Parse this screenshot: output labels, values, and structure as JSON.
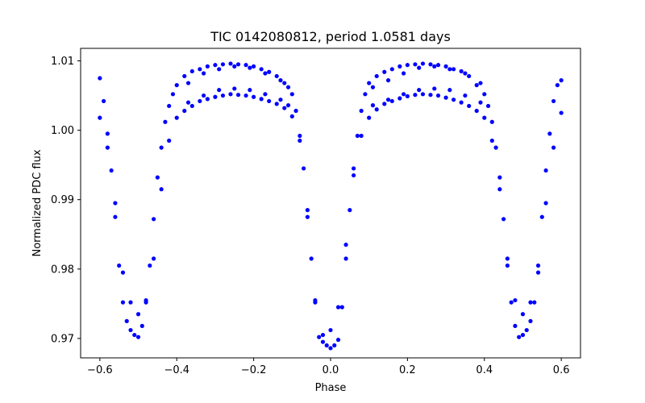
{
  "chart_data": {
    "type": "scatter",
    "title": "TIC 0142080812, period 1.0581 days",
    "xlabel": "Phase",
    "ylabel": "Normalized PDC flux",
    "xlim": [
      -0.65,
      0.65
    ],
    "ylim": [
      0.9672,
      1.0118
    ],
    "xticks": [
      -0.6,
      -0.4,
      -0.2,
      0.0,
      0.2,
      0.4,
      0.6
    ],
    "xtick_labels": [
      "−0.6",
      "−0.4",
      "−0.2",
      "0.0",
      "0.2",
      "0.4",
      "0.6"
    ],
    "yticks": [
      0.97,
      0.98,
      0.99,
      1.0,
      1.01
    ],
    "ytick_labels": [
      "0.97",
      "0.98",
      "0.99",
      "1.00",
      "1.01"
    ],
    "grid": false,
    "legend": "none",
    "marker_color": "#0000ff",
    "series": [
      {
        "name": "",
        "x": [
          -0.6,
          -0.59,
          -0.58,
          -0.57,
          -0.56,
          -0.55,
          -0.54,
          -0.53,
          -0.52,
          -0.51,
          -0.5,
          -0.49,
          -0.48,
          -0.47,
          -0.46,
          -0.45,
          -0.44,
          -0.43,
          -0.42,
          -0.41,
          -0.4,
          -0.38,
          -0.36,
          -0.34,
          -0.32,
          -0.3,
          -0.28,
          -0.26,
          -0.24,
          -0.22,
          -0.2,
          -0.18,
          -0.16,
          -0.14,
          -0.12,
          -0.1,
          -0.09,
          -0.08,
          -0.07,
          -0.06,
          -0.05,
          -0.04,
          -0.03,
          -0.02,
          -0.01,
          0.0,
          0.01,
          0.02,
          0.03,
          0.04,
          0.05,
          0.06,
          0.07,
          0.08,
          0.09,
          0.1,
          0.12,
          0.14,
          0.16,
          0.18,
          0.2,
          0.22,
          0.24,
          0.26,
          0.28,
          0.3,
          0.32,
          0.34,
          0.36,
          0.38,
          0.4,
          0.41,
          0.42,
          0.43,
          0.44,
          0.45,
          0.46,
          0.47,
          0.48,
          0.49,
          0.5,
          0.51,
          0.52,
          0.53,
          0.54,
          0.55,
          0.56,
          0.57,
          0.58,
          0.59,
          0.6,
          -0.6,
          -0.58,
          -0.56,
          -0.54,
          -0.52,
          -0.5,
          -0.48,
          -0.46,
          -0.44,
          -0.42,
          -0.4,
          -0.38,
          -0.36,
          -0.34,
          -0.32,
          -0.3,
          -0.28,
          -0.26,
          -0.24,
          -0.22,
          -0.2,
          -0.18,
          -0.16,
          -0.14,
          -0.12,
          -0.1,
          -0.08,
          -0.06,
          -0.04,
          -0.02,
          0.0,
          0.02,
          0.04,
          0.06,
          0.08,
          0.1,
          0.12,
          0.14,
          0.16,
          0.18,
          0.2,
          0.22,
          0.24,
          0.26,
          0.28,
          0.3,
          0.32,
          0.34,
          0.36,
          0.38,
          0.4,
          0.42,
          0.44,
          0.46,
          0.48,
          0.5,
          0.52,
          0.54,
          0.56,
          0.58,
          0.6,
          -0.37,
          -0.33,
          -0.29,
          -0.25,
          -0.21,
          -0.17,
          -0.13,
          -0.11,
          0.11,
          0.15,
          0.19,
          0.23,
          0.27,
          0.31,
          0.35,
          0.39,
          -0.37,
          -0.33,
          -0.29,
          -0.25,
          -0.21,
          -0.17,
          -0.13,
          -0.11,
          0.11,
          0.15,
          0.19,
          0.23,
          0.27,
          0.31,
          0.35,
          0.39
        ],
        "y": [
          1.0075,
          1.0042,
          0.9995,
          0.9942,
          0.9875,
          0.9805,
          0.9752,
          0.9725,
          0.9712,
          0.9705,
          0.9702,
          0.9718,
          0.9752,
          0.9805,
          0.9872,
          0.9932,
          0.9975,
          1.0012,
          1.0035,
          1.0052,
          1.0065,
          1.0078,
          1.0085,
          1.0088,
          1.0092,
          1.0094,
          1.0095,
          1.0096,
          1.0095,
          1.0094,
          1.0092,
          1.0088,
          1.0084,
          1.0078,
          1.0068,
          1.0052,
          1.0028,
          0.9992,
          0.9945,
          0.9885,
          0.9815,
          0.9752,
          0.9702,
          0.9695,
          0.969,
          0.9686,
          0.969,
          0.9698,
          0.9745,
          0.9815,
          0.9885,
          0.9945,
          0.9992,
          1.0028,
          1.0052,
          1.0068,
          1.0078,
          1.0084,
          1.0088,
          1.0092,
          1.0094,
          1.0095,
          1.0096,
          1.0095,
          1.0094,
          1.0092,
          1.0088,
          1.0085,
          1.0078,
          1.0065,
          1.0052,
          1.0035,
          1.0012,
          0.9975,
          0.9932,
          0.9872,
          0.9805,
          0.9752,
          0.9718,
          0.9702,
          0.9705,
          0.9712,
          0.9725,
          0.9752,
          0.9805,
          0.9875,
          0.9942,
          0.9995,
          1.0042,
          1.0065,
          1.0072,
          1.0018,
          0.9975,
          0.9895,
          0.9795,
          0.9752,
          0.9735,
          0.9755,
          0.9815,
          0.9915,
          0.9985,
          1.0018,
          1.0028,
          1.0035,
          1.0042,
          1.0045,
          1.0048,
          1.005,
          1.0052,
          1.0051,
          1.005,
          1.0048,
          1.0045,
          1.0042,
          1.0038,
          1.0032,
          1.002,
          0.9985,
          0.9875,
          0.9755,
          0.9705,
          0.9712,
          0.9745,
          0.9835,
          0.9935,
          0.9992,
          1.0018,
          1.003,
          1.0038,
          1.0042,
          1.0046,
          1.0049,
          1.0051,
          1.0052,
          1.0051,
          1.005,
          1.0047,
          1.0044,
          1.004,
          1.0035,
          1.0028,
          1.0018,
          0.9985,
          0.9915,
          0.9815,
          0.9755,
          0.9735,
          0.9752,
          0.9795,
          0.9895,
          0.9975,
          1.0025,
          1.0068,
          1.0082,
          1.0088,
          1.0092,
          1.009,
          1.0082,
          1.0072,
          1.0062,
          1.0062,
          1.0072,
          1.0082,
          1.009,
          1.0092,
          1.0088,
          1.0082,
          1.0068,
          1.004,
          1.005,
          1.0058,
          1.006,
          1.0058,
          1.0052,
          1.0044,
          1.0036,
          1.0036,
          1.0044,
          1.0052,
          1.0058,
          1.006,
          1.0058,
          1.005,
          1.004
        ]
      }
    ]
  }
}
